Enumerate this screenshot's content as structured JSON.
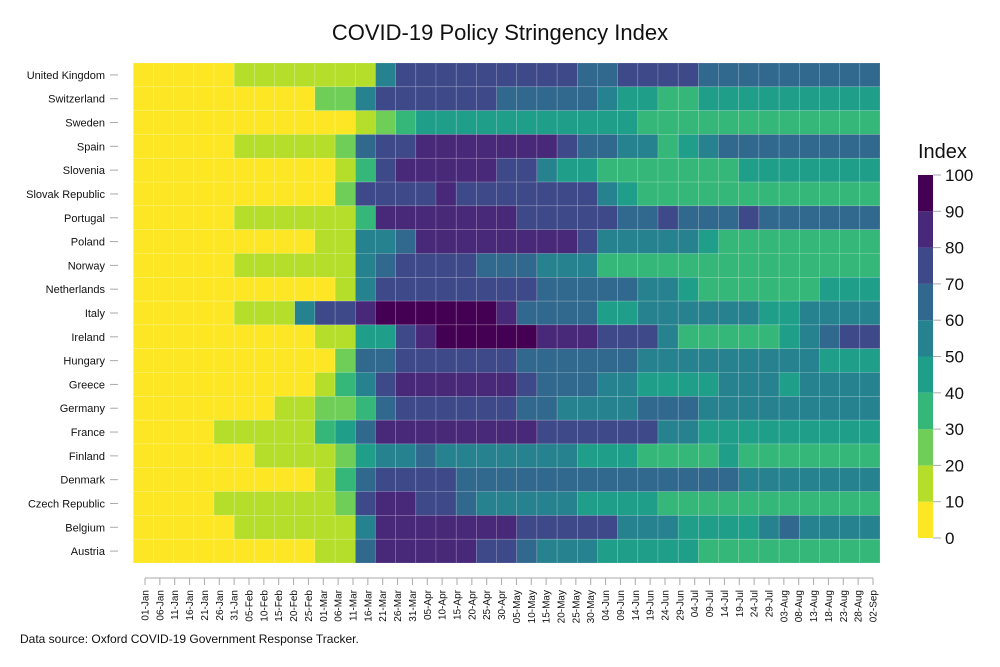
{
  "chart_data": {
    "type": "heatmap",
    "title": "COVID-19 Policy Stringency Index",
    "legend_title": "Index",
    "legend_position": "right",
    "color_scale": {
      "breaks": [
        0,
        10,
        20,
        30,
        40,
        50,
        60,
        70,
        80,
        90,
        100
      ],
      "colors": [
        "#fde725",
        "#b5de2b",
        "#6ece58",
        "#35b779",
        "#1f9e89",
        "#26828e",
        "#31688e",
        "#3e4989",
        "#482878",
        "#440154"
      ]
    },
    "legend_ticks": [
      "0",
      "10",
      "20",
      "30",
      "40",
      "50",
      "60",
      "70",
      "80",
      "90",
      "100"
    ],
    "x_tick_labels": [
      "01-Jan",
      "06-Jan",
      "11-Jan",
      "16-Jan",
      "21-Jan",
      "26-Jan",
      "31-Jan",
      "05-Feb",
      "10-Feb",
      "15-Feb",
      "20-Feb",
      "25-Feb",
      "01-Mar",
      "06-Mar",
      "11-Mar",
      "16-Mar",
      "21-Mar",
      "26-Mar",
      "31-Mar",
      "05-Apr",
      "10-Apr",
      "15-Apr",
      "20-Apr",
      "25-Apr",
      "30-Apr",
      "05-May",
      "10-May",
      "15-May",
      "20-May",
      "25-May",
      "30-May",
      "04-Jun",
      "09-Jun",
      "14-Jun",
      "19-Jun",
      "24-Jun",
      "29-Jun",
      "04-Jul",
      "09-Jul",
      "14-Jul",
      "19-Jul",
      "24-Jul",
      "29-Jul",
      "03-Aug",
      "08-Aug",
      "13-Aug",
      "18-Aug",
      "23-Aug",
      "28-Aug",
      "02-Sep"
    ],
    "x_range": [
      "01-Jan",
      "02-Sep"
    ],
    "rows": [
      {
        "country": "United Kingdom",
        "values": [
          0,
          0,
          0,
          0,
          0,
          11,
          11,
          11,
          11,
          11,
          11,
          11,
          55,
          75,
          75,
          75,
          75,
          75,
          75,
          75,
          75,
          75,
          65,
          65,
          75,
          75,
          75,
          75,
          65,
          65,
          65,
          65,
          65,
          65,
          65,
          65,
          65
        ]
      },
      {
        "country": "Switzerland",
        "values": [
          0,
          0,
          0,
          0,
          0,
          0,
          0,
          0,
          0,
          25,
          25,
          55,
          75,
          75,
          75,
          75,
          75,
          75,
          65,
          65,
          65,
          65,
          65,
          55,
          45,
          45,
          35,
          35,
          45,
          45,
          45,
          45,
          45,
          45,
          45,
          45,
          45
        ]
      },
      {
        "country": "Sweden",
        "values": [
          0,
          0,
          0,
          0,
          0,
          0,
          0,
          0,
          0,
          0,
          0,
          11,
          25,
          35,
          45,
          45,
          45,
          45,
          45,
          45,
          45,
          45,
          45,
          45,
          45,
          35,
          35,
          35,
          35,
          35,
          35,
          35,
          35,
          35,
          35,
          35,
          35
        ]
      },
      {
        "country": "Spain",
        "values": [
          0,
          0,
          0,
          0,
          0,
          11,
          11,
          11,
          11,
          11,
          25,
          65,
          75,
          75,
          85,
          85,
          85,
          85,
          85,
          85,
          85,
          75,
          65,
          65,
          55,
          55,
          35,
          45,
          55,
          65,
          65,
          65,
          65,
          65,
          65,
          65,
          65
        ]
      },
      {
        "country": "Slovenia",
        "values": [
          0,
          0,
          0,
          0,
          0,
          0,
          0,
          0,
          0,
          0,
          11,
          35,
          75,
          85,
          85,
          85,
          85,
          85,
          75,
          75,
          55,
          45,
          45,
          35,
          35,
          35,
          35,
          35,
          35,
          35,
          45,
          45,
          45,
          45,
          45,
          45,
          45
        ]
      },
      {
        "country": "Slovak Republic",
        "values": [
          0,
          0,
          0,
          0,
          0,
          0,
          0,
          0,
          0,
          0,
          25,
          75,
          75,
          75,
          75,
          85,
          75,
          75,
          75,
          75,
          75,
          75,
          75,
          55,
          45,
          35,
          35,
          35,
          35,
          35,
          35,
          35,
          35,
          35,
          35,
          35,
          35
        ]
      },
      {
        "country": "Portugal",
        "values": [
          0,
          0,
          0,
          0,
          0,
          11,
          11,
          11,
          11,
          11,
          11,
          35,
          85,
          85,
          85,
          85,
          85,
          85,
          85,
          75,
          75,
          75,
          75,
          75,
          65,
          65,
          75,
          65,
          65,
          65,
          75,
          65,
          65,
          65,
          65,
          65,
          65
        ]
      },
      {
        "country": "Poland",
        "values": [
          0,
          0,
          0,
          0,
          0,
          0,
          0,
          0,
          0,
          11,
          11,
          55,
          55,
          65,
          85,
          85,
          85,
          85,
          85,
          85,
          85,
          85,
          75,
          55,
          55,
          55,
          55,
          55,
          45,
          35,
          35,
          35,
          35,
          35,
          35,
          35,
          35
        ]
      },
      {
        "country": "Norway",
        "values": [
          0,
          0,
          0,
          0,
          0,
          11,
          11,
          11,
          11,
          11,
          11,
          55,
          65,
          75,
          75,
          75,
          75,
          65,
          65,
          65,
          55,
          55,
          55,
          35,
          35,
          35,
          35,
          35,
          35,
          35,
          35,
          35,
          35,
          35,
          35,
          35,
          35
        ]
      },
      {
        "country": "Netherlands",
        "values": [
          0,
          0,
          0,
          0,
          0,
          0,
          0,
          0,
          0,
          0,
          11,
          55,
          75,
          75,
          75,
          75,
          75,
          75,
          75,
          75,
          65,
          65,
          65,
          65,
          65,
          55,
          55,
          45,
          35,
          35,
          35,
          35,
          35,
          35,
          45,
          45,
          45
        ]
      },
      {
        "country": "Italy",
        "values": [
          0,
          0,
          0,
          0,
          0,
          11,
          11,
          11,
          55,
          75,
          75,
          85,
          95,
          95,
          95,
          95,
          95,
          95,
          85,
          65,
          65,
          65,
          65,
          45,
          45,
          55,
          55,
          55,
          55,
          55,
          55,
          45,
          45,
          55,
          55,
          55,
          55
        ]
      },
      {
        "country": "Ireland",
        "values": [
          0,
          0,
          0,
          0,
          0,
          0,
          0,
          0,
          0,
          11,
          11,
          45,
          45,
          75,
          85,
          95,
          95,
          95,
          95,
          95,
          85,
          85,
          85,
          75,
          75,
          75,
          55,
          35,
          35,
          35,
          35,
          35,
          45,
          55,
          65,
          75,
          75
        ]
      },
      {
        "country": "Hungary",
        "values": [
          0,
          0,
          0,
          0,
          0,
          0,
          0,
          0,
          0,
          0,
          25,
          65,
          65,
          75,
          75,
          75,
          75,
          75,
          75,
          65,
          65,
          65,
          65,
          65,
          65,
          55,
          55,
          55,
          55,
          55,
          55,
          55,
          55,
          55,
          45,
          45,
          45
        ]
      },
      {
        "country": "Greece",
        "values": [
          0,
          0,
          0,
          0,
          0,
          0,
          0,
          0,
          0,
          11,
          35,
          55,
          75,
          85,
          85,
          85,
          85,
          85,
          85,
          75,
          65,
          65,
          65,
          55,
          55,
          45,
          45,
          45,
          45,
          55,
          55,
          55,
          45,
          55,
          55,
          55,
          55
        ]
      },
      {
        "country": "Germany",
        "values": [
          0,
          0,
          0,
          0,
          0,
          0,
          0,
          11,
          11,
          25,
          25,
          35,
          65,
          75,
          75,
          75,
          75,
          75,
          75,
          65,
          65,
          55,
          55,
          55,
          55,
          65,
          65,
          65,
          55,
          55,
          55,
          55,
          55,
          55,
          55,
          55,
          55
        ]
      },
      {
        "country": "France",
        "values": [
          0,
          0,
          0,
          0,
          11,
          11,
          11,
          11,
          11,
          35,
          45,
          65,
          85,
          85,
          85,
          85,
          85,
          85,
          85,
          85,
          75,
          75,
          75,
          75,
          75,
          75,
          55,
          55,
          45,
          45,
          45,
          45,
          45,
          45,
          45,
          45,
          45
        ]
      },
      {
        "country": "Finland",
        "values": [
          0,
          0,
          0,
          0,
          0,
          0,
          11,
          11,
          11,
          11,
          25,
          45,
          55,
          55,
          65,
          55,
          55,
          55,
          55,
          55,
          55,
          55,
          45,
          45,
          45,
          35,
          35,
          35,
          35,
          45,
          35,
          35,
          35,
          35,
          35,
          35,
          35
        ]
      },
      {
        "country": "Denmark",
        "values": [
          0,
          0,
          0,
          0,
          0,
          0,
          0,
          0,
          0,
          11,
          35,
          65,
          75,
          75,
          75,
          75,
          65,
          65,
          65,
          65,
          65,
          65,
          65,
          65,
          65,
          65,
          65,
          65,
          65,
          65,
          55,
          55,
          55,
          55,
          55,
          55,
          55
        ]
      },
      {
        "country": "Czech Republic",
        "values": [
          0,
          0,
          0,
          0,
          11,
          11,
          11,
          11,
          11,
          11,
          25,
          75,
          85,
          85,
          75,
          75,
          65,
          55,
          55,
          55,
          55,
          55,
          45,
          45,
          45,
          45,
          35,
          35,
          35,
          35,
          35,
          35,
          35,
          35,
          35,
          35,
          35
        ]
      },
      {
        "country": "Belgium",
        "values": [
          0,
          0,
          0,
          0,
          0,
          11,
          11,
          11,
          11,
          11,
          11,
          55,
          85,
          85,
          85,
          85,
          85,
          85,
          85,
          75,
          75,
          75,
          75,
          75,
          55,
          55,
          55,
          45,
          45,
          45,
          45,
          55,
          65,
          55,
          55,
          55,
          55
        ]
      },
      {
        "country": "Austria",
        "values": [
          0,
          0,
          0,
          0,
          0,
          0,
          0,
          0,
          0,
          11,
          11,
          65,
          85,
          85,
          85,
          85,
          85,
          75,
          75,
          65,
          55,
          55,
          55,
          45,
          45,
          45,
          45,
          45,
          35,
          35,
          35,
          35,
          35,
          35,
          35,
          35,
          35
        ]
      }
    ]
  },
  "footer": "Data source: Oxford COVID-19 Government Response Tracker."
}
